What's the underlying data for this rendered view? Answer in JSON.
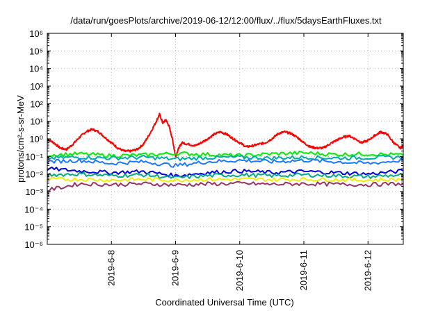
{
  "chart_data": {
    "type": "line",
    "title": "/data/run/goesPlots/archive/2019-06-12/12:00/flux/../flux/5daysEarthFluxes.txt",
    "xlabel": "Coordinated Universal Time (UTC)",
    "ylabel": "protons/cm²-s-sr-MeV",
    "yscale": "log",
    "ylim": [
      1e-06,
      1000000.0
    ],
    "xlim": [
      7.0,
      12.55
    ],
    "grid": true,
    "x_ticks": [
      {
        "value": 8,
        "label": "2019-6-8"
      },
      {
        "value": 9,
        "label": "2019-6-9"
      },
      {
        "value": 10,
        "label": "2019-6-10"
      },
      {
        "value": 11,
        "label": "2019-6-11"
      },
      {
        "value": 12,
        "label": "2019-6-12"
      }
    ],
    "y_ticks": [
      {
        "exp": -6,
        "label": "10⁻⁶"
      },
      {
        "exp": -5,
        "label": "10⁻⁵"
      },
      {
        "exp": -4,
        "label": "10⁻⁴"
      },
      {
        "exp": -3,
        "label": "10⁻³"
      },
      {
        "exp": -2,
        "label": "10⁻²"
      },
      {
        "exp": -1,
        "label": "10⁻¹"
      },
      {
        "exp": 0,
        "label": "10⁰"
      },
      {
        "exp": 1,
        "label": "10¹"
      },
      {
        "exp": 2,
        "label": "10²"
      },
      {
        "exp": 3,
        "label": "10³"
      },
      {
        "exp": 4,
        "label": "10⁴"
      },
      {
        "exp": 5,
        "label": "10⁵"
      },
      {
        "exp": 6,
        "label": "10⁶"
      }
    ],
    "series": [
      {
        "color": "#ff0000",
        "x": [
          7.0,
          7.1,
          7.2,
          7.3,
          7.4,
          7.5,
          7.6,
          7.7,
          7.8,
          7.9,
          8.0,
          8.1,
          8.2,
          8.3,
          8.4,
          8.5,
          8.6,
          8.7,
          8.75,
          8.8,
          8.85,
          8.9,
          8.95,
          9.0,
          9.05,
          9.1,
          9.2,
          9.3,
          9.4,
          9.5,
          9.6,
          9.7,
          9.8,
          9.9,
          10.0,
          10.1,
          10.2,
          10.3,
          10.4,
          10.5,
          10.6,
          10.7,
          10.8,
          10.9,
          11.0,
          11.1,
          11.2,
          11.3,
          11.4,
          11.5,
          11.6,
          11.7,
          11.8,
          11.9,
          12.0,
          12.1,
          12.2,
          12.3,
          12.4,
          12.5,
          12.55
        ],
        "y": [
          1.0,
          0.6,
          0.3,
          0.25,
          0.5,
          1.2,
          2.5,
          3.5,
          2.5,
          1.2,
          0.6,
          0.3,
          0.2,
          0.2,
          0.25,
          0.5,
          2.0,
          10,
          25,
          8,
          12,
          5,
          1.0,
          0.1,
          0.3,
          0.6,
          0.5,
          0.4,
          0.6,
          1.0,
          1.8,
          2.5,
          1.8,
          1.0,
          0.6,
          0.35,
          0.4,
          0.5,
          0.6,
          1.0,
          2.0,
          2.5,
          2.0,
          1.2,
          0.6,
          0.35,
          0.3,
          0.3,
          0.5,
          0.8,
          1.2,
          1.5,
          1.0,
          0.6,
          0.8,
          1.5,
          2.5,
          1.8,
          0.6,
          0.3,
          0.4
        ]
      },
      {
        "color": "#00ee00",
        "x": [
          7.0,
          7.5,
          8.0,
          8.5,
          9.0,
          9.5,
          10.0,
          10.5,
          11.0,
          11.5,
          12.0,
          12.55
        ],
        "y": [
          0.12,
          0.14,
          0.11,
          0.12,
          0.15,
          0.13,
          0.11,
          0.14,
          0.16,
          0.13,
          0.14,
          0.12
        ]
      },
      {
        "color": "#00aaaa",
        "x": [
          7.0,
          7.5,
          8.0,
          8.5,
          9.0,
          9.5,
          10.0,
          10.5,
          11.0,
          11.5,
          12.0,
          12.55
        ],
        "y": [
          0.08,
          0.09,
          0.08,
          0.09,
          0.07,
          0.085,
          0.09,
          0.08,
          0.09,
          0.08,
          0.085,
          0.09
        ]
      },
      {
        "color": "#1e78ff",
        "x": [
          7.0,
          7.5,
          8.0,
          8.5,
          9.0,
          9.5,
          10.0,
          10.5,
          11.0,
          11.5,
          12.0,
          12.55
        ],
        "y": [
          0.05,
          0.06,
          0.04,
          0.05,
          0.03,
          0.05,
          0.06,
          0.05,
          0.06,
          0.05,
          0.04,
          0.06
        ]
      },
      {
        "color": "#0000dd",
        "x": [
          7.0,
          7.5,
          8.0,
          8.5,
          9.0,
          9.5,
          10.0,
          10.5,
          11.0,
          11.5,
          12.0,
          12.55
        ],
        "y": [
          0.02,
          0.015,
          0.012,
          0.014,
          0.008,
          0.012,
          0.015,
          0.012,
          0.014,
          0.012,
          0.01,
          0.015
        ]
      },
      {
        "color": "#00aa88",
        "x": [
          7.0,
          7.5,
          8.0,
          8.5,
          9.0,
          9.5,
          10.0,
          10.5,
          11.0,
          11.5,
          12.0,
          12.55
        ],
        "y": [
          0.009,
          0.01,
          0.008,
          0.009,
          0.006,
          0.008,
          0.009,
          0.008,
          0.009,
          0.008,
          0.007,
          0.009
        ]
      },
      {
        "color": "#eeee00",
        "x": [
          7.0,
          7.5,
          8.0,
          8.5,
          9.0,
          9.5,
          10.0,
          10.5,
          11.0,
          11.5,
          12.0,
          12.55
        ],
        "y": [
          0.005,
          0.005,
          0.0045,
          0.005,
          0.0045,
          0.005,
          0.005,
          0.0048,
          0.005,
          0.0048,
          0.0045,
          0.005
        ]
      },
      {
        "color": "#993366",
        "x": [
          7.0,
          7.5,
          8.0,
          8.5,
          9.0,
          9.5,
          10.0,
          10.5,
          11.0,
          11.5,
          12.0,
          12.55
        ],
        "y": [
          0.0012,
          0.0028,
          0.0025,
          0.0028,
          0.0024,
          0.0027,
          0.0029,
          0.0026,
          0.0028,
          0.0026,
          0.0025,
          0.0028
        ]
      }
    ]
  }
}
